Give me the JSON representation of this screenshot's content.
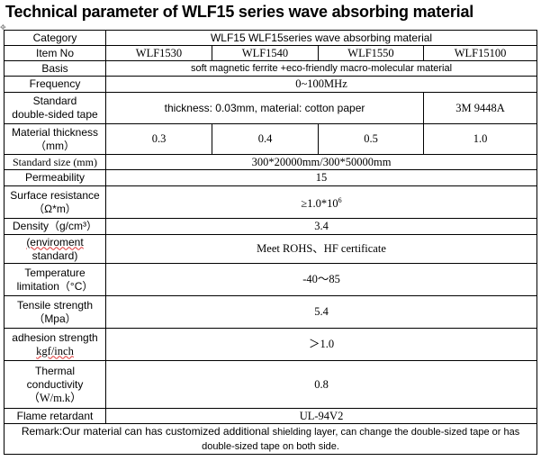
{
  "title": "Technical parameter of WLF15 series wave absorbing material",
  "rows": {
    "category": {
      "label": "Category",
      "value": "WLF15 WLF15series wave absorbing material"
    },
    "item_no": {
      "label": "Item No",
      "values": [
        "WLF1530",
        "WLF1540",
        "WLF1550",
        "WLF15100"
      ]
    },
    "basis": {
      "label": "Basis",
      "value": "soft magnetic ferrite +eco-friendly macro-molecular material"
    },
    "frequency": {
      "label": "Frequency",
      "value": "0~100MHz"
    },
    "tape": {
      "label_1": "Standard",
      "label_2": "double-sided tape",
      "value": "thickness: 0.03mm, material: cotton paper",
      "value_2": "3M 9448A"
    },
    "thickness": {
      "label_1": "Material thickness",
      "label_2": "（mm）",
      "values": [
        "0.3",
        "0.4",
        "0.5",
        "1.0"
      ]
    },
    "size": {
      "label": "Standard size (mm)",
      "value": "300*20000mm/300*50000mm"
    },
    "permeability": {
      "label": "Permeability",
      "value": "15"
    },
    "surface_resistance": {
      "label_1": "Surface resistance",
      "label_2": "（Ω*m）",
      "value": "≥1.0*10",
      "value_sup": "6"
    },
    "density": {
      "label": "Density（g/cm³）",
      "value": "3.4"
    },
    "environment": {
      "label_1": "(enviroment",
      "label_2": "standard)",
      "value": "Meet ROHS、HF certificate"
    },
    "temperature": {
      "label_1": "Temperature",
      "label_2": "limitation（°C）",
      "value": "-40～85"
    },
    "tensile": {
      "label_1": "Tensile strength",
      "label_2": "（Mpa）",
      "value": "5.4"
    },
    "adhesion": {
      "label_1": "adhesion strength",
      "label_2": "kgf/inch",
      "value": "＞1.0"
    },
    "thermal": {
      "label_1": "Thermal",
      "label_2": "conductivity",
      "label_3": "（W/m.k）",
      "value": "0.8"
    },
    "flame": {
      "label": "Flame retardant",
      "value": "UL-94V2"
    }
  },
  "remark": {
    "part_1": "Remark:Our material can has customized additional ",
    "part_2": "shielding layer, can change the double-sized tape or has",
    "line_2": "double-sized tape on both side."
  },
  "handle_icon": "move-handle-icon"
}
